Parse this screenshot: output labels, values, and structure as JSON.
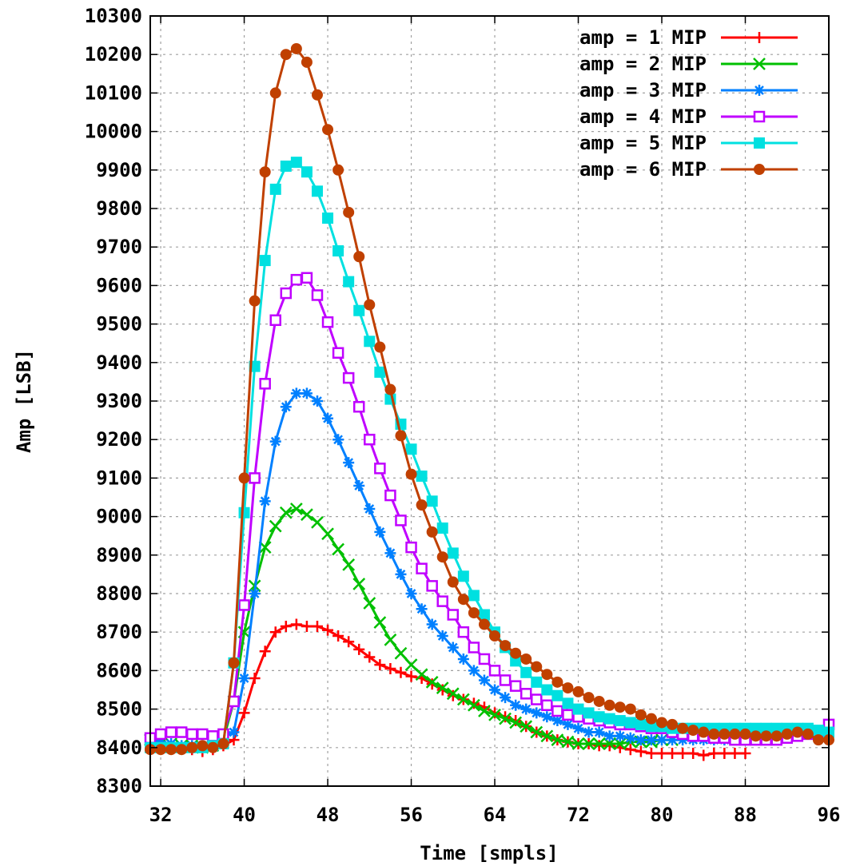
{
  "chart_data": {
    "type": "line",
    "title": "",
    "xlabel": "Time [smpls]",
    "ylabel": "Amp [LSB]",
    "xlim": [
      31,
      96
    ],
    "ylim": [
      8300,
      10300
    ],
    "x_ticks": [
      32,
      40,
      48,
      56,
      64,
      72,
      80,
      88,
      96
    ],
    "y_ticks": [
      8300,
      8400,
      8500,
      8600,
      8700,
      8800,
      8900,
      9000,
      9100,
      9200,
      9300,
      9400,
      9500,
      9600,
      9700,
      9800,
      9900,
      10000,
      10100,
      10200,
      10300
    ],
    "grid": true,
    "legend_position": "top-right",
    "series": [
      {
        "name": "amp = 1 MIP",
        "color": "#ff0000",
        "marker": "plus",
        "x": [
          31,
          32,
          33,
          34,
          35,
          36,
          37,
          38,
          39,
          40,
          41,
          42,
          43,
          44,
          45,
          46,
          47,
          48,
          49,
          50,
          51,
          52,
          53,
          54,
          55,
          56,
          57,
          58,
          59,
          60,
          61,
          62,
          63,
          64,
          65,
          66,
          67,
          68,
          69,
          70,
          71,
          72,
          73,
          74,
          75,
          76,
          77,
          78,
          79,
          80,
          81,
          82,
          83,
          84,
          85,
          86,
          87,
          88
        ],
        "y": [
          8405,
          8400,
          8400,
          8400,
          8395,
          8390,
          8395,
          8405,
          8420,
          8490,
          8580,
          8650,
          8700,
          8715,
          8720,
          8715,
          8715,
          8705,
          8690,
          8675,
          8655,
          8635,
          8615,
          8605,
          8595,
          8585,
          8580,
          8565,
          8550,
          8535,
          8525,
          8515,
          8505,
          8490,
          8480,
          8470,
          8455,
          8440,
          8430,
          8420,
          8415,
          8410,
          8410,
          8405,
          8405,
          8400,
          8395,
          8390,
          8385,
          8385,
          8385,
          8385,
          8385,
          8380,
          8385,
          8385,
          8385,
          8385
        ]
      },
      {
        "name": "amp = 2 MIP",
        "color": "#00c000",
        "marker": "cross",
        "x": [
          31,
          32,
          33,
          34,
          35,
          36,
          37,
          38,
          39,
          40,
          41,
          42,
          43,
          44,
          45,
          46,
          47,
          48,
          49,
          50,
          51,
          52,
          53,
          54,
          55,
          56,
          57,
          58,
          59,
          60,
          61,
          62,
          63,
          64,
          65,
          66,
          67,
          68,
          69,
          70,
          71,
          72,
          73,
          74,
          75,
          76,
          77,
          78,
          79,
          80,
          81
        ],
        "y": [
          8420,
          8410,
          8410,
          8405,
          8405,
          8400,
          8405,
          8420,
          8520,
          8700,
          8820,
          8920,
          8975,
          9010,
          9020,
          9005,
          8985,
          8955,
          8915,
          8875,
          8825,
          8775,
          8725,
          8680,
          8645,
          8615,
          8590,
          8570,
          8555,
          8540,
          8525,
          8510,
          8495,
          8485,
          8475,
          8465,
          8455,
          8440,
          8430,
          8420,
          8415,
          8410,
          8410,
          8410,
          8410,
          8410,
          8415,
          8415,
          8415,
          8420,
          8420
        ]
      },
      {
        "name": "amp = 3 MIP",
        "color": "#0080ff",
        "marker": "star",
        "x": [
          31,
          32,
          33,
          34,
          35,
          36,
          37,
          38,
          39,
          40,
          41,
          42,
          43,
          44,
          45,
          46,
          47,
          48,
          49,
          50,
          51,
          52,
          53,
          54,
          55,
          56,
          57,
          58,
          59,
          60,
          61,
          62,
          63,
          64,
          65,
          66,
          67,
          68,
          69,
          70,
          71,
          72,
          73,
          74,
          75,
          76,
          77,
          78,
          79,
          80,
          81,
          82,
          83,
          84,
          85,
          86,
          87,
          88,
          89,
          90
        ],
        "y": [
          8420,
          8415,
          8410,
          8405,
          8405,
          8405,
          8410,
          8430,
          8440,
          8580,
          8800,
          9040,
          9195,
          9285,
          9320,
          9320,
          9300,
          9255,
          9200,
          9140,
          9080,
          9020,
          8960,
          8905,
          8850,
          8800,
          8760,
          8720,
          8690,
          8660,
          8630,
          8600,
          8575,
          8550,
          8530,
          8510,
          8500,
          8490,
          8480,
          8470,
          8460,
          8450,
          8440,
          8440,
          8430,
          8430,
          8425,
          8420,
          8420,
          8420,
          8420,
          8420,
          8420,
          8420,
          8420,
          8420,
          8420,
          8420,
          8420,
          8425
        ]
      },
      {
        "name": "amp = 4 MIP",
        "color": "#c000ff",
        "marker": "open-square",
        "x": [
          31,
          32,
          33,
          34,
          35,
          36,
          37,
          38,
          39,
          40,
          41,
          42,
          43,
          44,
          45,
          46,
          47,
          48,
          49,
          50,
          51,
          52,
          53,
          54,
          55,
          56,
          57,
          58,
          59,
          60,
          61,
          62,
          63,
          64,
          65,
          66,
          67,
          68,
          69,
          70,
          71,
          72,
          73,
          74,
          75,
          76,
          77,
          78,
          79,
          80,
          81,
          82,
          83,
          84,
          85,
          86,
          87,
          88,
          89,
          90,
          91,
          92,
          93,
          94,
          95,
          96
        ],
        "y": [
          8425,
          8435,
          8440,
          8440,
          8435,
          8435,
          8430,
          8435,
          8520,
          8770,
          9100,
          9345,
          9510,
          9580,
          9615,
          9620,
          9575,
          9505,
          9425,
          9360,
          9285,
          9200,
          9125,
          9055,
          8990,
          8920,
          8865,
          8820,
          8780,
          8745,
          8700,
          8660,
          8630,
          8600,
          8575,
          8560,
          8540,
          8525,
          8510,
          8495,
          8485,
          8480,
          8475,
          8470,
          8465,
          8460,
          8460,
          8455,
          8450,
          8450,
          8440,
          8435,
          8430,
          8430,
          8425,
          8425,
          8420,
          8420,
          8420,
          8420,
          8420,
          8425,
          8430,
          8435,
          8440,
          8460
        ]
      },
      {
        "name": "amp = 5 MIP",
        "color": "#00e0e0",
        "marker": "filled-square",
        "x": [
          31,
          32,
          33,
          34,
          35,
          36,
          37,
          38,
          39,
          40,
          41,
          42,
          43,
          44,
          45,
          46,
          47,
          48,
          49,
          50,
          51,
          52,
          53,
          54,
          55,
          56,
          57,
          58,
          59,
          60,
          61,
          62,
          63,
          64,
          65,
          66,
          67,
          68,
          69,
          70,
          71,
          72,
          73,
          74,
          75,
          76,
          77,
          78,
          79,
          80,
          81,
          82,
          83,
          84,
          85,
          86,
          87,
          88,
          89,
          90,
          91,
          92,
          93,
          94,
          95,
          96
        ],
        "y": [
          8400,
          8400,
          8400,
          8400,
          8400,
          8400,
          8405,
          8410,
          8620,
          9010,
          9390,
          9665,
          9850,
          9910,
          9920,
          9895,
          9845,
          9775,
          9690,
          9610,
          9535,
          9455,
          9375,
          9305,
          9240,
          9175,
          9105,
          9040,
          8970,
          8905,
          8845,
          8795,
          8745,
          8700,
          8660,
          8625,
          8595,
          8570,
          8550,
          8535,
          8515,
          8500,
          8490,
          8480,
          8475,
          8470,
          8465,
          8460,
          8455,
          8455,
          8450,
          8450,
          8450,
          8450,
          8450,
          8450,
          8450,
          8450,
          8450,
          8450,
          8450,
          8450,
          8450,
          8450,
          8445,
          8440
        ]
      },
      {
        "name": "amp = 6 MIP",
        "color": "#c04000",
        "marker": "filled-circle",
        "x": [
          31,
          32,
          33,
          34,
          35,
          36,
          37,
          38,
          39,
          40,
          41,
          42,
          43,
          44,
          45,
          46,
          47,
          48,
          49,
          50,
          51,
          52,
          53,
          54,
          55,
          56,
          57,
          58,
          59,
          60,
          61,
          62,
          63,
          64,
          65,
          66,
          67,
          68,
          69,
          70,
          71,
          72,
          73,
          74,
          75,
          76,
          77,
          78,
          79,
          80,
          81,
          82,
          83,
          84,
          85,
          86,
          87,
          88,
          89,
          90,
          91,
          92,
          93,
          94,
          95,
          96
        ],
        "y": [
          8395,
          8395,
          8395,
          8395,
          8400,
          8405,
          8400,
          8410,
          8620,
          9100,
          9560,
          9895,
          10100,
          10200,
          10215,
          10180,
          10095,
          10005,
          9900,
          9790,
          9675,
          9550,
          9440,
          9330,
          9210,
          9110,
          9030,
          8960,
          8895,
          8830,
          8785,
          8750,
          8720,
          8690,
          8665,
          8645,
          8630,
          8610,
          8590,
          8570,
          8555,
          8545,
          8530,
          8520,
          8510,
          8505,
          8500,
          8485,
          8475,
          8465,
          8460,
          8450,
          8445,
          8440,
          8435,
          8435,
          8435,
          8435,
          8430,
          8430,
          8430,
          8435,
          8440,
          8435,
          8420,
          8420
        ]
      }
    ]
  }
}
